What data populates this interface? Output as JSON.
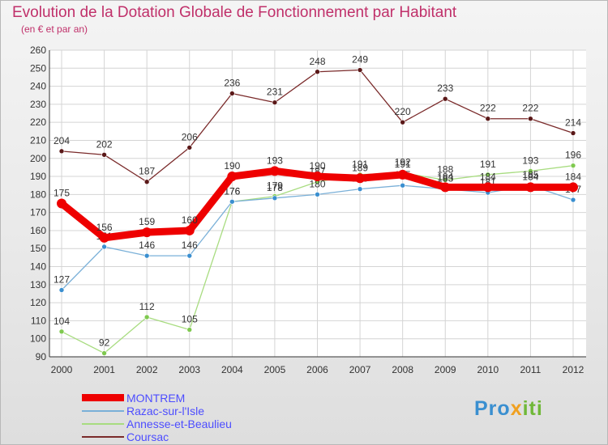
{
  "header": {
    "title": "Evolution de la Dotation Globale de Fonctionnement par Habitant",
    "subtitle": "(en € et par an)"
  },
  "logo": {
    "text": "Proxiti",
    "part1": "Pro",
    "part2": "x",
    "part3": "iti"
  },
  "colors": {
    "title": "#c0306a",
    "legend_text": "#4d4dff",
    "axis": "#333333"
  },
  "chart_data": {
    "type": "line",
    "title": "Evolution de la Dotation Globale de Fonctionnement par Habitant",
    "subtitle": "(en € et par an)",
    "xlabel": "",
    "ylabel": "",
    "ylim": [
      90,
      260
    ],
    "yticks": [
      90,
      100,
      110,
      120,
      130,
      140,
      150,
      160,
      170,
      180,
      190,
      200,
      210,
      220,
      230,
      240,
      250,
      260
    ],
    "grid": true,
    "legend_position": "bottom-left",
    "x": [
      "2000",
      "2001",
      "2002",
      "2003",
      "2004",
      "2005",
      "2006",
      "2007",
      "2008",
      "2009",
      "2010",
      "2011",
      "2012"
    ],
    "series": [
      {
        "name": "Coursac",
        "color": "#7a2a2a",
        "point_color": "#5a1818",
        "values": [
          204,
          202,
          187,
          206,
          236,
          231,
          248,
          249,
          220,
          233,
          222,
          222,
          214
        ]
      },
      {
        "name": "Annesse-et-Beaulieu",
        "color": "#a8dc80",
        "point_color": "#7fc94f",
        "values": [
          104,
          92,
          112,
          105,
          176,
          179,
          187,
          191,
          192,
          188,
          191,
          193,
          196
        ]
      },
      {
        "name": "Razac-sur-l'Isle",
        "color": "#7ab0d8",
        "point_color": "#3a8fd0",
        "values": [
          127,
          151,
          146,
          146,
          176,
          178,
          180,
          183,
          185,
          183,
          181,
          185,
          177
        ]
      },
      {
        "name": "MONTREM",
        "color": "#ee0000",
        "point_color": "#ee0000",
        "values": [
          175,
          156,
          159,
          160,
          190,
          193,
          190,
          189,
          191,
          184,
          184,
          184,
          184
        ]
      }
    ]
  },
  "legend": [
    {
      "label": "MONTREM",
      "color": "#ee0000"
    },
    {
      "label": "Razac-sur-l'Isle",
      "color": "#7ab0d8"
    },
    {
      "label": "Annesse-et-Beaulieu",
      "color": "#a8dc80"
    },
    {
      "label": "Coursac",
      "color": "#7a2a2a"
    }
  ]
}
